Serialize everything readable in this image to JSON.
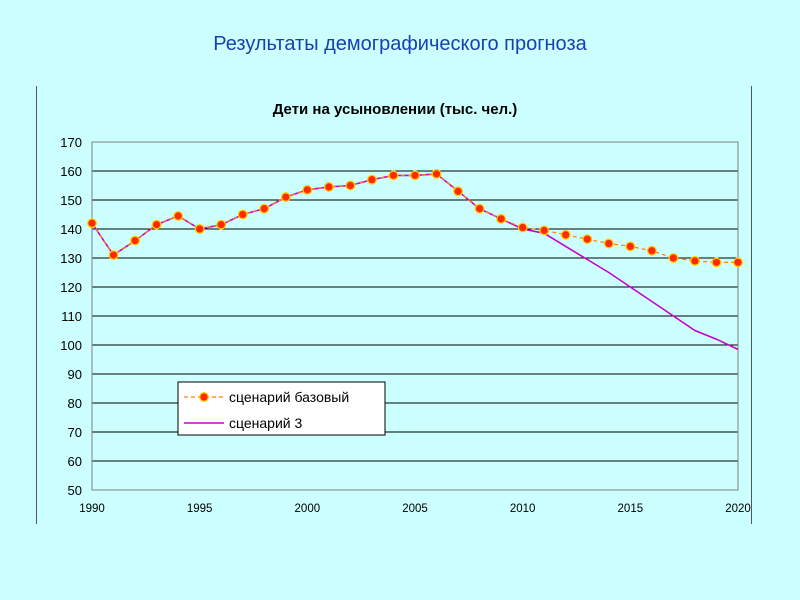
{
  "slide": {
    "title": "Результаты демографического прогноза"
  },
  "colors": {
    "background": "#ccffff",
    "title_text": "#1a3fb0",
    "series_base_line": "#ff8000",
    "series_base_marker": "#ff2a00",
    "series_3_line": "#cc00cc",
    "gridline": "#000000"
  },
  "chart_data": {
    "type": "line",
    "title": "Дети на усыновлении (тыс. чел.)",
    "xlabel": "",
    "ylabel": "",
    "xlim": [
      1990,
      2020
    ],
    "ylim": [
      50,
      170
    ],
    "y_ticks": [
      "170",
      "160",
      "150",
      "140",
      "130",
      "120",
      "110",
      "100",
      "90",
      "80",
      "70",
      "60",
      "50"
    ],
    "x_ticks": [
      "1990",
      "1995",
      "2000",
      "2005",
      "2010",
      "2015",
      "2020"
    ],
    "grid": "horizontal",
    "legend_position": "lower-left",
    "x": [
      1990,
      1991,
      1992,
      1993,
      1994,
      1995,
      1996,
      1997,
      1998,
      1999,
      2000,
      2001,
      2002,
      2003,
      2004,
      2005,
      2006,
      2007,
      2008,
      2009,
      2010,
      2011,
      2012,
      2013,
      2014,
      2015,
      2016,
      2017,
      2018,
      2019,
      2020
    ],
    "series": [
      {
        "name": "сценарий базовый",
        "marker": "circle",
        "values": [
          142,
          131,
          136,
          141.5,
          144.5,
          140,
          141.5,
          145,
          147,
          151,
          153.5,
          154.5,
          155,
          157,
          158.5,
          158.5,
          159,
          153,
          147,
          143.5,
          140.5,
          139.5,
          138,
          136.5,
          135,
          134,
          132.5,
          130,
          129,
          128.5,
          128.5
        ]
      },
      {
        "name": "сценарий 3",
        "marker": "none",
        "values": [
          142,
          131,
          136,
          141.5,
          144.5,
          140,
          141.5,
          145,
          147,
          151,
          153.5,
          154.5,
          155,
          157,
          158.5,
          158.5,
          159,
          153,
          147,
          143.5,
          140,
          138.5,
          134,
          129.5,
          125,
          120,
          115,
          110,
          105,
          102,
          98.5
        ]
      }
    ]
  }
}
